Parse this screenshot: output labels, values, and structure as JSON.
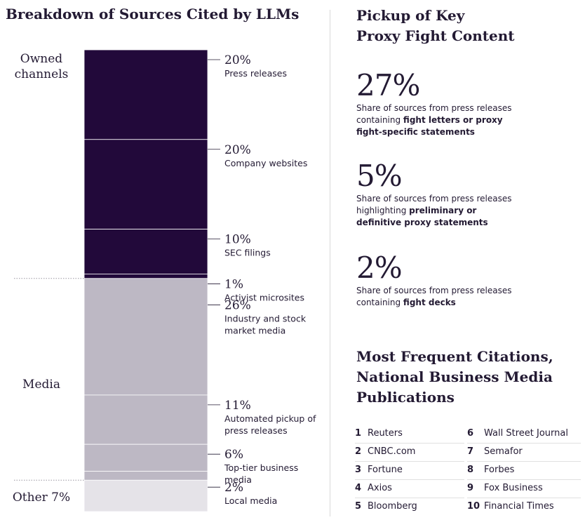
{
  "left_title": "Breakdown of Sources Cited by LLMs",
  "right_title_line1": "Pickup of Key",
  "right_title_line2": "Proxy Fight Content",
  "chart_data": {
    "type": "bar",
    "orientation": "stacked-vertical",
    "title": "Breakdown of Sources Cited by LLMs",
    "unit": "%",
    "segments": [
      {
        "group": "Owned channels",
        "label": "Press releases",
        "value": 20,
        "display": "20%"
      },
      {
        "group": "Owned channels",
        "label": "Company websites",
        "value": 20,
        "display": "20%"
      },
      {
        "group": "Owned channels",
        "label": "SEC filings",
        "value": 10,
        "display": "10%"
      },
      {
        "group": "Owned channels",
        "label": "Activist microsites",
        "value": 1,
        "display": "1%"
      },
      {
        "group": "Media",
        "label": "Industry and stock market media",
        "value": 26,
        "display": "26%"
      },
      {
        "group": "Media",
        "label": "Automated pickup of press releases",
        "value": 11,
        "display": "11%"
      },
      {
        "group": "Media",
        "label": "Top-tier business media",
        "value": 6,
        "display": "6%"
      },
      {
        "group": "Media",
        "label": "Local media",
        "value": 2,
        "display": "2%"
      },
      {
        "group": "Other",
        "label": "",
        "value": 7,
        "display": ""
      }
    ],
    "groups": [
      {
        "name": "Owned channels",
        "label_lines": [
          "Owned",
          "channels"
        ],
        "color": "#22093a"
      },
      {
        "name": "Media",
        "label_lines": [
          "Media"
        ],
        "color": "#bdb8c4"
      },
      {
        "name": "Other",
        "label_lines": [
          "Other 7%"
        ],
        "color": "#e5e3e8"
      }
    ]
  },
  "stats": [
    {
      "value": "27%",
      "desc_pre": "Share of sources from press releases containing ",
      "desc_bold": "fight letters or proxy fight-specific statements",
      "desc_post": ""
    },
    {
      "value": "5%",
      "desc_pre": "Share of sources from press releases highlighting ",
      "desc_bold": "preliminary or definitive proxy statements",
      "desc_post": ""
    },
    {
      "value": "2%",
      "desc_pre": "Share of sources from press releases containing ",
      "desc_bold": "fight decks",
      "desc_post": ""
    }
  ],
  "citations_title_lines": [
    "Most Frequent Citations,",
    "National Business Media",
    "Publications"
  ],
  "citations": [
    {
      "rank": "1",
      "name": "Reuters"
    },
    {
      "rank": "2",
      "name": "CNBC.com"
    },
    {
      "rank": "3",
      "name": "Fortune"
    },
    {
      "rank": "4",
      "name": "Axios"
    },
    {
      "rank": "5",
      "name": "Bloomberg"
    },
    {
      "rank": "6",
      "name": "Wall Street Journal"
    },
    {
      "rank": "7",
      "name": "Semafor"
    },
    {
      "rank": "8",
      "name": "Forbes"
    },
    {
      "rank": "9",
      "name": "Fox Business"
    },
    {
      "rank": "10",
      "name": "Financial Times"
    }
  ]
}
